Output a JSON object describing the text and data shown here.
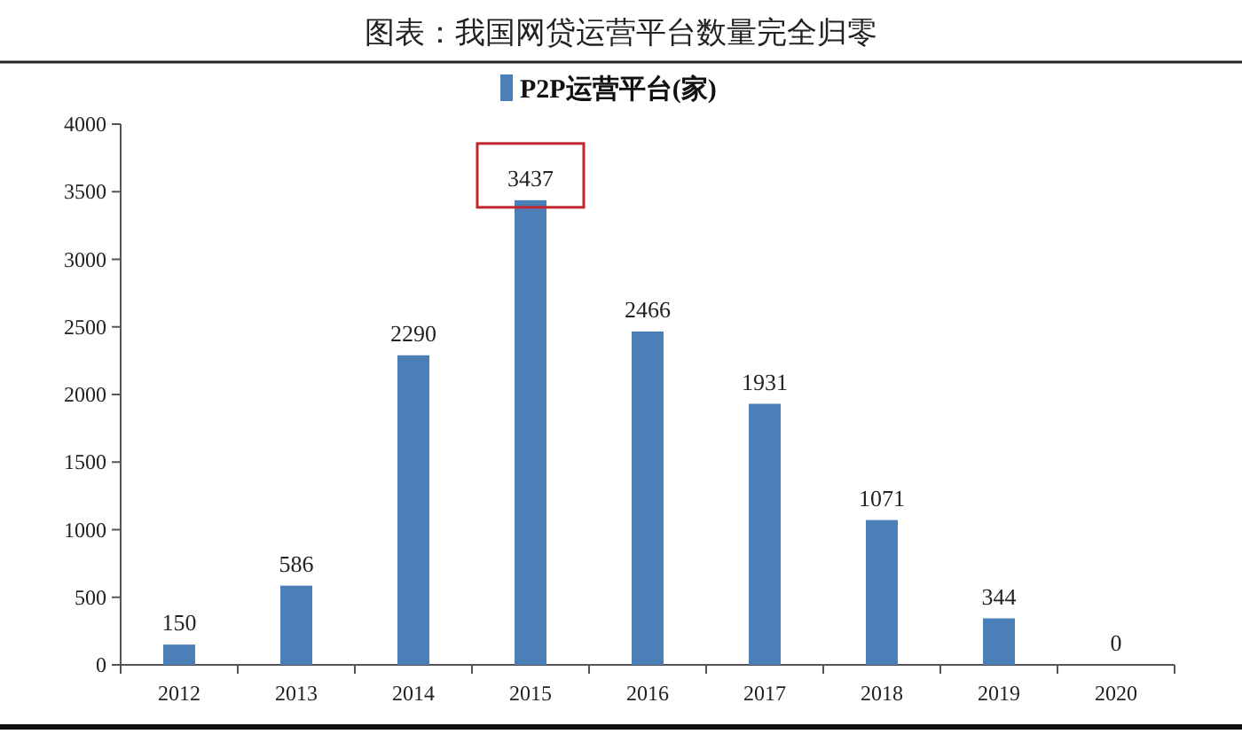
{
  "chart_data": {
    "type": "bar",
    "title": "图表：我国网贷运营平台数量完全归零",
    "categories": [
      "2012",
      "2013",
      "2014",
      "2015",
      "2016",
      "2017",
      "2018",
      "2019",
      "2020"
    ],
    "series": [
      {
        "name": "P2P运营平台(家)",
        "color": "#4a7fb8",
        "values": [
          150,
          586,
          2290,
          3437,
          2466,
          1931,
          1071,
          344,
          0
        ]
      }
    ],
    "ylim": [
      0,
      4000
    ],
    "yticks": [
      0,
      500,
      1000,
      1500,
      2000,
      2500,
      3000,
      3500,
      4000
    ],
    "data_labels": true,
    "legend": "top",
    "grid": false
  }
}
